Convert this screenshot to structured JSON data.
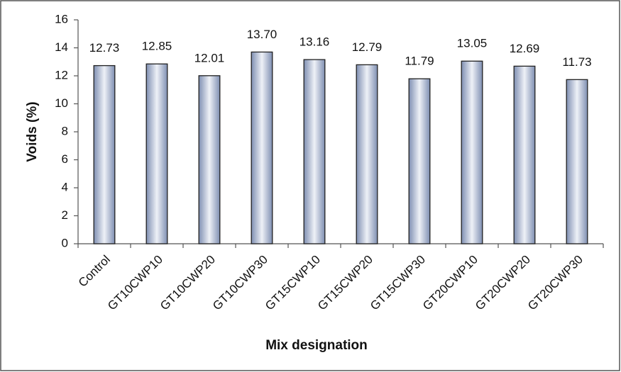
{
  "chart_data": {
    "type": "bar",
    "x_label": "Mix designation",
    "y_label": "Voids (%)",
    "categories": [
      "Control",
      "GT10CWP10",
      "GT10CWP20",
      "GT10CWP30",
      "GT15CWP10",
      "GT15CWP20",
      "GT15CWP30",
      "GT20CWP10",
      "GT20CWP20",
      "GT20CWP30"
    ],
    "values": [
      12.73,
      12.85,
      12.01,
      13.7,
      13.16,
      12.79,
      11.79,
      13.05,
      12.69,
      11.73
    ],
    "value_labels": [
      "12.73",
      "12.85",
      "12.01",
      "13.70",
      "13.16",
      "12.79",
      "11.79",
      "13.05",
      "12.69",
      "11.73"
    ],
    "color": "#7f8fb2",
    "ylim": [
      0,
      16
    ],
    "yticks": [
      0,
      2,
      4,
      6,
      8,
      10,
      12,
      14,
      16
    ],
    "grid": false
  }
}
